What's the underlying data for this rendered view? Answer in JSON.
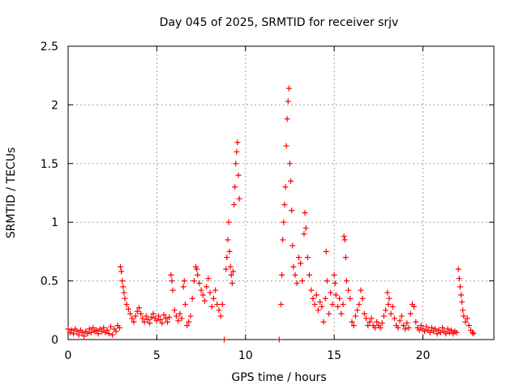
{
  "chart_data": {
    "type": "scatter",
    "title": "Day 045 of 2025, SRMTID for receiver srjv",
    "xlabel": "GPS time / hours",
    "ylabel": "SRMTID / TECUs",
    "xlim": [
      0,
      24
    ],
    "ylim": [
      0,
      2.5
    ],
    "x_ticks": [
      0,
      5,
      10,
      15,
      20
    ],
    "x_tick_labels": [
      "0",
      "5",
      "10",
      "15",
      "20"
    ],
    "y_ticks": [
      0,
      0.5,
      1,
      1.5,
      2,
      2.5
    ],
    "y_tick_labels": [
      "0",
      "0.5",
      "1",
      "1.5",
      "2",
      "2.5"
    ],
    "grid": true,
    "marker": "plus",
    "series": [
      {
        "name": "SRMTID",
        "color": "#ff0000",
        "points": [
          [
            0.0,
            0.09
          ],
          [
            0.1,
            0.06
          ],
          [
            0.2,
            0.08
          ],
          [
            0.3,
            0.05
          ],
          [
            0.4,
            0.09
          ],
          [
            0.5,
            0.07
          ],
          [
            0.6,
            0.04
          ],
          [
            0.7,
            0.08
          ],
          [
            0.8,
            0.06
          ],
          [
            0.9,
            0.03
          ],
          [
            1.0,
            0.07
          ],
          [
            1.1,
            0.05
          ],
          [
            1.2,
            0.09
          ],
          [
            1.3,
            0.06
          ],
          [
            1.4,
            0.1
          ],
          [
            1.5,
            0.07
          ],
          [
            1.6,
            0.08
          ],
          [
            1.7,
            0.05
          ],
          [
            1.8,
            0.09
          ],
          [
            1.9,
            0.07
          ],
          [
            2.0,
            0.1
          ],
          [
            2.1,
            0.06
          ],
          [
            2.2,
            0.08
          ],
          [
            2.3,
            0.05
          ],
          [
            2.4,
            0.11
          ],
          [
            2.5,
            0.04
          ],
          [
            2.6,
            0.09
          ],
          [
            2.7,
            0.07
          ],
          [
            2.8,
            0.12
          ],
          [
            2.9,
            0.1
          ],
          [
            2.95,
            0.62
          ],
          [
            3.0,
            0.58
          ],
          [
            3.05,
            0.5
          ],
          [
            3.1,
            0.45
          ],
          [
            3.15,
            0.4
          ],
          [
            3.2,
            0.35
          ],
          [
            3.3,
            0.3
          ],
          [
            3.4,
            0.26
          ],
          [
            3.5,
            0.22
          ],
          [
            3.6,
            0.18
          ],
          [
            3.7,
            0.15
          ],
          [
            3.8,
            0.2
          ],
          [
            3.9,
            0.24
          ],
          [
            4.0,
            0.27
          ],
          [
            4.1,
            0.22
          ],
          [
            4.2,
            0.18
          ],
          [
            4.3,
            0.15
          ],
          [
            4.4,
            0.2
          ],
          [
            4.5,
            0.17
          ],
          [
            4.6,
            0.14
          ],
          [
            4.7,
            0.19
          ],
          [
            4.8,
            0.22
          ],
          [
            4.9,
            0.18
          ],
          [
            5.0,
            0.16
          ],
          [
            5.1,
            0.2
          ],
          [
            5.2,
            0.17
          ],
          [
            5.3,
            0.14
          ],
          [
            5.4,
            0.21
          ],
          [
            5.5,
            0.18
          ],
          [
            5.6,
            0.15
          ],
          [
            5.7,
            0.19
          ],
          [
            5.8,
            0.55
          ],
          [
            5.85,
            0.5
          ],
          [
            5.9,
            0.42
          ],
          [
            6.0,
            0.25
          ],
          [
            6.1,
            0.2
          ],
          [
            6.2,
            0.16
          ],
          [
            6.3,
            0.22
          ],
          [
            6.4,
            0.18
          ],
          [
            6.5,
            0.45
          ],
          [
            6.55,
            0.5
          ],
          [
            6.6,
            0.3
          ],
          [
            6.7,
            0.12
          ],
          [
            6.8,
            0.15
          ],
          [
            6.9,
            0.2
          ],
          [
            7.0,
            0.35
          ],
          [
            7.1,
            0.5
          ],
          [
            7.2,
            0.62
          ],
          [
            7.25,
            0.6
          ],
          [
            7.3,
            0.55
          ],
          [
            7.4,
            0.48
          ],
          [
            7.5,
            0.42
          ],
          [
            7.6,
            0.38
          ],
          [
            7.7,
            0.33
          ],
          [
            7.8,
            0.45
          ],
          [
            7.9,
            0.52
          ],
          [
            8.0,
            0.4
          ],
          [
            8.1,
            0.28
          ],
          [
            8.2,
            0.35
          ],
          [
            8.3,
            0.42
          ],
          [
            8.4,
            0.3
          ],
          [
            8.5,
            0.25
          ],
          [
            8.6,
            0.2
          ],
          [
            8.7,
            0.3
          ],
          [
            8.8,
            0.0
          ],
          [
            8.9,
            0.6
          ],
          [
            8.95,
            0.7
          ],
          [
            9.0,
            0.85
          ],
          [
            9.05,
            1.0
          ],
          [
            9.1,
            0.75
          ],
          [
            9.15,
            0.62
          ],
          [
            9.2,
            0.55
          ],
          [
            9.25,
            0.48
          ],
          [
            9.3,
            0.58
          ],
          [
            9.35,
            1.15
          ],
          [
            9.4,
            1.3
          ],
          [
            9.45,
            1.5
          ],
          [
            9.5,
            1.6
          ],
          [
            9.55,
            1.68
          ],
          [
            9.6,
            1.4
          ],
          [
            9.65,
            1.2
          ],
          [
            11.9,
            0.0
          ],
          [
            12.0,
            0.3
          ],
          [
            12.05,
            0.55
          ],
          [
            12.1,
            0.85
          ],
          [
            12.15,
            1.0
          ],
          [
            12.2,
            1.15
          ],
          [
            12.25,
            1.3
          ],
          [
            12.3,
            1.65
          ],
          [
            12.35,
            1.88
          ],
          [
            12.4,
            2.03
          ],
          [
            12.45,
            2.14
          ],
          [
            12.5,
            1.5
          ],
          [
            12.55,
            1.35
          ],
          [
            12.6,
            1.1
          ],
          [
            12.65,
            0.8
          ],
          [
            12.7,
            0.62
          ],
          [
            12.8,
            0.55
          ],
          [
            12.9,
            0.48
          ],
          [
            13.0,
            0.7
          ],
          [
            13.1,
            0.65
          ],
          [
            13.2,
            0.5
          ],
          [
            13.3,
            0.9
          ],
          [
            13.35,
            1.08
          ],
          [
            13.4,
            0.95
          ],
          [
            13.5,
            0.7
          ],
          [
            13.6,
            0.55
          ],
          [
            13.7,
            0.42
          ],
          [
            13.8,
            0.35
          ],
          [
            13.9,
            0.3
          ],
          [
            14.0,
            0.38
          ],
          [
            14.1,
            0.25
          ],
          [
            14.2,
            0.32
          ],
          [
            14.3,
            0.28
          ],
          [
            14.4,
            0.15
          ],
          [
            14.5,
            0.35
          ],
          [
            14.55,
            0.75
          ],
          [
            14.6,
            0.5
          ],
          [
            14.7,
            0.22
          ],
          [
            14.8,
            0.4
          ],
          [
            14.9,
            0.3
          ],
          [
            15.0,
            0.55
          ],
          [
            15.05,
            0.48
          ],
          [
            15.1,
            0.38
          ],
          [
            15.2,
            0.28
          ],
          [
            15.3,
            0.35
          ],
          [
            15.4,
            0.22
          ],
          [
            15.5,
            0.3
          ],
          [
            15.55,
            0.88
          ],
          [
            15.6,
            0.85
          ],
          [
            15.65,
            0.7
          ],
          [
            15.7,
            0.5
          ],
          [
            15.8,
            0.42
          ],
          [
            15.9,
            0.35
          ],
          [
            16.0,
            0.15
          ],
          [
            16.1,
            0.12
          ],
          [
            16.2,
            0.2
          ],
          [
            16.3,
            0.25
          ],
          [
            16.4,
            0.3
          ],
          [
            16.5,
            0.42
          ],
          [
            16.6,
            0.35
          ],
          [
            16.7,
            0.22
          ],
          [
            16.8,
            0.18
          ],
          [
            16.9,
            0.12
          ],
          [
            17.0,
            0.15
          ],
          [
            17.1,
            0.18
          ],
          [
            17.2,
            0.12
          ],
          [
            17.3,
            0.1
          ],
          [
            17.4,
            0.15
          ],
          [
            17.5,
            0.12
          ],
          [
            17.6,
            0.1
          ],
          [
            17.7,
            0.14
          ],
          [
            17.8,
            0.2
          ],
          [
            17.9,
            0.25
          ],
          [
            18.0,
            0.4
          ],
          [
            18.05,
            0.3
          ],
          [
            18.1,
            0.35
          ],
          [
            18.2,
            0.22
          ],
          [
            18.3,
            0.28
          ],
          [
            18.4,
            0.18
          ],
          [
            18.5,
            0.12
          ],
          [
            18.6,
            0.1
          ],
          [
            18.7,
            0.16
          ],
          [
            18.8,
            0.2
          ],
          [
            18.9,
            0.12
          ],
          [
            19.0,
            0.09
          ],
          [
            19.1,
            0.14
          ],
          [
            19.2,
            0.1
          ],
          [
            19.3,
            0.22
          ],
          [
            19.4,
            0.3
          ],
          [
            19.5,
            0.28
          ],
          [
            19.6,
            0.15
          ],
          [
            19.7,
            0.1
          ],
          [
            19.8,
            0.08
          ],
          [
            19.9,
            0.12
          ],
          [
            20.0,
            0.09
          ],
          [
            20.1,
            0.07
          ],
          [
            20.2,
            0.11
          ],
          [
            20.3,
            0.08
          ],
          [
            20.4,
            0.06
          ],
          [
            20.5,
            0.1
          ],
          [
            20.6,
            0.07
          ],
          [
            20.7,
            0.09
          ],
          [
            20.8,
            0.05
          ],
          [
            20.9,
            0.08
          ],
          [
            21.0,
            0.06
          ],
          [
            21.1,
            0.1
          ],
          [
            21.2,
            0.07
          ],
          [
            21.3,
            0.05
          ],
          [
            21.4,
            0.09
          ],
          [
            21.5,
            0.06
          ],
          [
            21.6,
            0.08
          ],
          [
            21.7,
            0.05
          ],
          [
            21.8,
            0.07
          ],
          [
            21.9,
            0.06
          ],
          [
            22.0,
            0.6
          ],
          [
            22.05,
            0.52
          ],
          [
            22.1,
            0.45
          ],
          [
            22.15,
            0.38
          ],
          [
            22.2,
            0.32
          ],
          [
            22.25,
            0.25
          ],
          [
            22.3,
            0.2
          ],
          [
            22.4,
            0.15
          ],
          [
            22.5,
            0.18
          ],
          [
            22.6,
            0.12
          ],
          [
            22.7,
            0.08
          ],
          [
            22.8,
            0.06
          ],
          [
            22.85,
            0.05
          ]
        ]
      }
    ]
  }
}
